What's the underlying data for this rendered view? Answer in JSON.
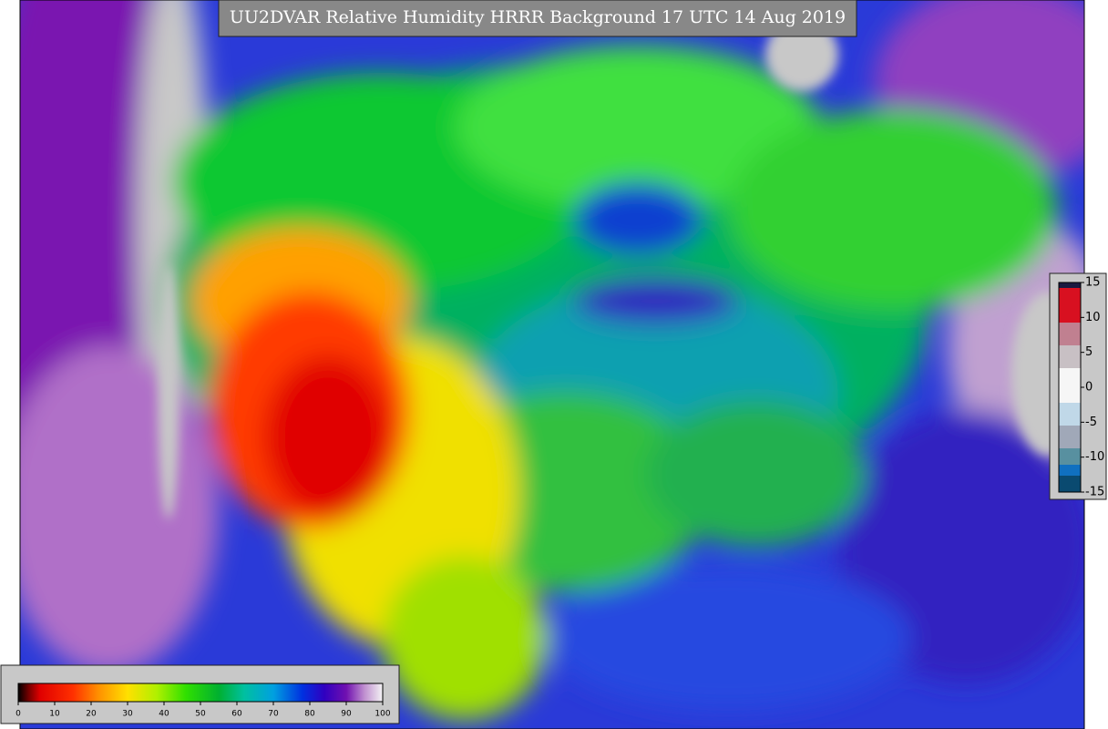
{
  "title": "UU2DVAR Relative Humidity HRRR Background  17 UTC 14 Aug 2019",
  "rh_colorbar": {
    "ticks": [
      0,
      10,
      20,
      30,
      40,
      50,
      60,
      70,
      80,
      90,
      100
    ]
  },
  "increment_colorbar": {
    "ticks": [
      15,
      10,
      5,
      0,
      -5,
      -10,
      -15
    ]
  }
}
